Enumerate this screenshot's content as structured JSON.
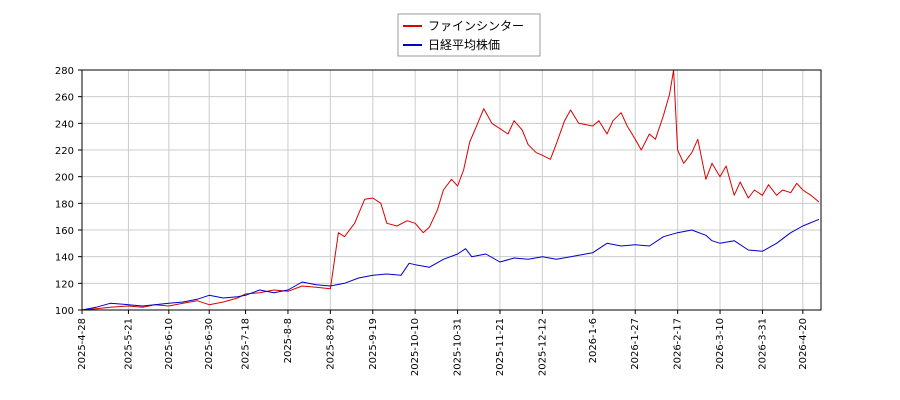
{
  "chart_data": {
    "type": "line",
    "title": "",
    "xlabel": "",
    "ylabel": "",
    "ylim": [
      100,
      280
    ],
    "yticks": [
      100,
      120,
      140,
      160,
      180,
      200,
      220,
      240,
      260,
      280
    ],
    "xlim": [
      "2025-04-28",
      "2026-04-29"
    ],
    "xtick_labels": [
      "2025-4-28",
      "2025-5-21",
      "2025-6-10",
      "2025-6-30",
      "2025-7-18",
      "2025-8-8",
      "2025-8-29",
      "2025-9-19",
      "2025-10-10",
      "2025-10-31",
      "2025-11-21",
      "2025-12-12",
      "2026-1-6",
      "2026-1-27",
      "2026-2-17",
      "2026-3-10",
      "2026-3-31",
      "2026-4-20"
    ],
    "xtick_dates": [
      "2025-04-28",
      "2025-05-21",
      "2025-06-10",
      "2025-06-30",
      "2025-07-18",
      "2025-08-08",
      "2025-08-29",
      "2025-09-19",
      "2025-10-10",
      "2025-10-31",
      "2025-11-21",
      "2025-12-12",
      "2026-01-06",
      "2026-01-27",
      "2026-02-17",
      "2026-03-10",
      "2026-03-31",
      "2026-04-20"
    ],
    "grid": true,
    "legend_position": "top-center",
    "series": [
      {
        "name": "ファインシンター",
        "color": "#dd0000",
        "points": [
          [
            "2025-04-28",
            100
          ],
          [
            "2025-05-05",
            101
          ],
          [
            "2025-05-12",
            102
          ],
          [
            "2025-05-21",
            103
          ],
          [
            "2025-05-28",
            102
          ],
          [
            "2025-06-03",
            104
          ],
          [
            "2025-06-10",
            103
          ],
          [
            "2025-06-17",
            105
          ],
          [
            "2025-06-24",
            107
          ],
          [
            "2025-06-30",
            104
          ],
          [
            "2025-07-07",
            106
          ],
          [
            "2025-07-14",
            109
          ],
          [
            "2025-07-18",
            112
          ],
          [
            "2025-07-25",
            113
          ],
          [
            "2025-08-01",
            115
          ],
          [
            "2025-08-08",
            114
          ],
          [
            "2025-08-15",
            118
          ],
          [
            "2025-08-22",
            117
          ],
          [
            "2025-08-29",
            116
          ],
          [
            "2025-09-02",
            158
          ],
          [
            "2025-09-05",
            155
          ],
          [
            "2025-09-10",
            165
          ],
          [
            "2025-09-15",
            183
          ],
          [
            "2025-09-19",
            184
          ],
          [
            "2025-09-23",
            180
          ],
          [
            "2025-09-26",
            165
          ],
          [
            "2025-10-01",
            163
          ],
          [
            "2025-10-06",
            167
          ],
          [
            "2025-10-10",
            165
          ],
          [
            "2025-10-14",
            158
          ],
          [
            "2025-10-17",
            162
          ],
          [
            "2025-10-21",
            175
          ],
          [
            "2025-10-24",
            190
          ],
          [
            "2025-10-28",
            198
          ],
          [
            "2025-10-31",
            193
          ],
          [
            "2025-11-03",
            205
          ],
          [
            "2025-11-06",
            226
          ],
          [
            "2025-11-10",
            240
          ],
          [
            "2025-11-13",
            251
          ],
          [
            "2025-11-17",
            240
          ],
          [
            "2025-11-21",
            236
          ],
          [
            "2025-11-25",
            232
          ],
          [
            "2025-11-28",
            242
          ],
          [
            "2025-12-02",
            235
          ],
          [
            "2025-12-05",
            224
          ],
          [
            "2025-12-09",
            218
          ],
          [
            "2025-12-12",
            216
          ],
          [
            "2025-12-16",
            213
          ],
          [
            "2025-12-19",
            225
          ],
          [
            "2025-12-23",
            242
          ],
          [
            "2025-12-26",
            250
          ],
          [
            "2025-12-30",
            240
          ],
          [
            "2026-01-06",
            238
          ],
          [
            "2026-01-09",
            242
          ],
          [
            "2026-01-13",
            232
          ],
          [
            "2026-01-16",
            242
          ],
          [
            "2026-01-20",
            248
          ],
          [
            "2026-01-23",
            238
          ],
          [
            "2026-01-27",
            228
          ],
          [
            "2026-01-30",
            220
          ],
          [
            "2026-02-03",
            232
          ],
          [
            "2026-02-06",
            228
          ],
          [
            "2026-02-10",
            246
          ],
          [
            "2026-02-13",
            262
          ],
          [
            "2026-02-15",
            280
          ],
          [
            "2026-02-17",
            220
          ],
          [
            "2026-02-20",
            210
          ],
          [
            "2026-02-24",
            218
          ],
          [
            "2026-02-27",
            228
          ],
          [
            "2026-03-03",
            198
          ],
          [
            "2026-03-06",
            210
          ],
          [
            "2026-03-10",
            200
          ],
          [
            "2026-03-13",
            208
          ],
          [
            "2026-03-17",
            186
          ],
          [
            "2026-03-20",
            196
          ],
          [
            "2026-03-24",
            184
          ],
          [
            "2026-03-27",
            190
          ],
          [
            "2026-03-31",
            186
          ],
          [
            "2026-04-03",
            194
          ],
          [
            "2026-04-07",
            186
          ],
          [
            "2026-04-10",
            190
          ],
          [
            "2026-04-14",
            188
          ],
          [
            "2026-04-17",
            195
          ],
          [
            "2026-04-20",
            190
          ],
          [
            "2026-04-24",
            186
          ],
          [
            "2026-04-28",
            181
          ]
        ]
      },
      {
        "name": "日経平均株価",
        "color": "#0000cc",
        "points": [
          [
            "2025-04-28",
            100
          ],
          [
            "2025-05-05",
            102
          ],
          [
            "2025-05-12",
            105
          ],
          [
            "2025-05-21",
            104
          ],
          [
            "2025-05-28",
            103
          ],
          [
            "2025-06-03",
            104
          ],
          [
            "2025-06-10",
            105
          ],
          [
            "2025-06-17",
            106
          ],
          [
            "2025-06-24",
            108
          ],
          [
            "2025-06-30",
            111
          ],
          [
            "2025-07-07",
            109
          ],
          [
            "2025-07-14",
            110
          ],
          [
            "2025-07-18",
            111
          ],
          [
            "2025-07-25",
            115
          ],
          [
            "2025-08-01",
            113
          ],
          [
            "2025-08-08",
            115
          ],
          [
            "2025-08-15",
            121
          ],
          [
            "2025-08-22",
            119
          ],
          [
            "2025-08-29",
            118
          ],
          [
            "2025-09-05",
            120
          ],
          [
            "2025-09-12",
            124
          ],
          [
            "2025-09-19",
            126
          ],
          [
            "2025-09-26",
            127
          ],
          [
            "2025-10-03",
            126
          ],
          [
            "2025-10-07",
            135
          ],
          [
            "2025-10-10",
            134
          ],
          [
            "2025-10-17",
            132
          ],
          [
            "2025-10-24",
            138
          ],
          [
            "2025-10-31",
            142
          ],
          [
            "2025-11-04",
            146
          ],
          [
            "2025-11-07",
            140
          ],
          [
            "2025-11-14",
            142
          ],
          [
            "2025-11-21",
            136
          ],
          [
            "2025-11-28",
            139
          ],
          [
            "2025-12-05",
            138
          ],
          [
            "2025-12-12",
            140
          ],
          [
            "2025-12-19",
            138
          ],
          [
            "2025-12-26",
            140
          ],
          [
            "2026-01-06",
            143
          ],
          [
            "2026-01-13",
            150
          ],
          [
            "2026-01-20",
            148
          ],
          [
            "2026-01-27",
            149
          ],
          [
            "2026-02-03",
            148
          ],
          [
            "2026-02-10",
            155
          ],
          [
            "2026-02-17",
            158
          ],
          [
            "2026-02-24",
            160
          ],
          [
            "2026-03-03",
            156
          ],
          [
            "2026-03-06",
            152
          ],
          [
            "2026-03-10",
            150
          ],
          [
            "2026-03-17",
            152
          ],
          [
            "2026-03-24",
            145
          ],
          [
            "2026-03-31",
            144
          ],
          [
            "2026-04-07",
            150
          ],
          [
            "2026-04-14",
            158
          ],
          [
            "2026-04-20",
            163
          ],
          [
            "2026-04-28",
            168
          ]
        ]
      }
    ]
  }
}
